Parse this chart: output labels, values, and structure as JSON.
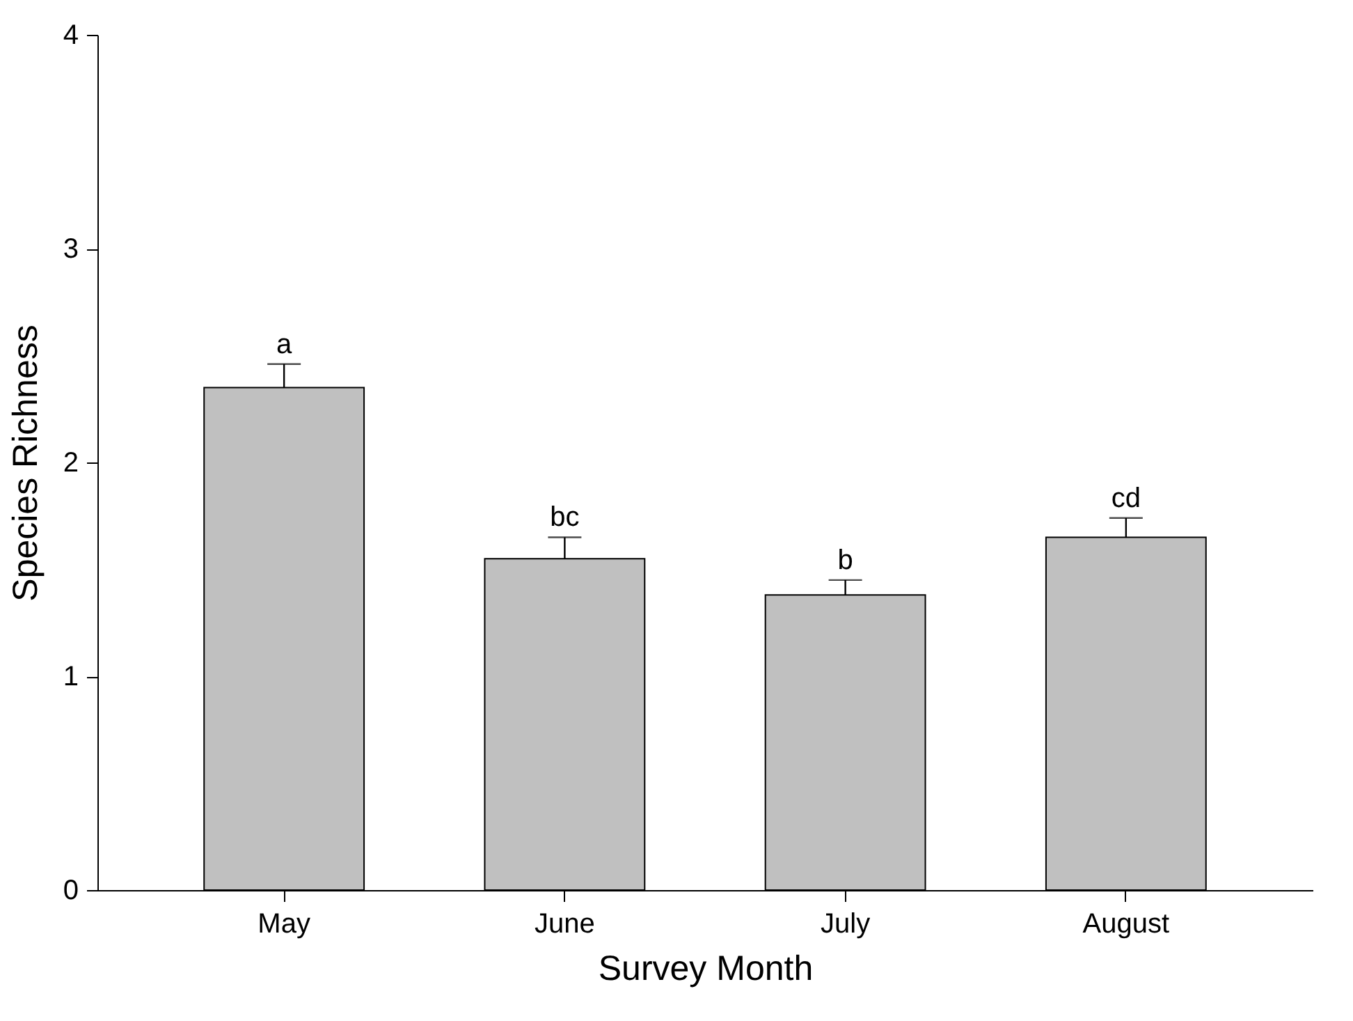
{
  "chart_data": {
    "type": "bar",
    "xlabel": "Survey Month",
    "ylabel": "Species Richness",
    "categories": [
      "May",
      "June",
      "July",
      "August"
    ],
    "values": [
      2.35,
      1.55,
      1.38,
      1.65
    ],
    "errors": [
      [
        2.35,
        2.46
      ],
      [
        1.55,
        1.65
      ],
      [
        1.38,
        1.45
      ],
      [
        1.65,
        1.74
      ]
    ],
    "color": "#c0c0c0",
    "ylim": [
      0,
      4
    ],
    "yticks": [
      0,
      1,
      2,
      3,
      4
    ],
    "grid": false,
    "annotations": [
      {
        "text": "a",
        "x": "May",
        "y": 2.46
      },
      {
        "text": "bc",
        "x": "June",
        "y": 1.65
      },
      {
        "text": "b",
        "x": "July",
        "y": 1.45
      },
      {
        "text": "cd",
        "x": "August",
        "y": 1.74
      }
    ]
  }
}
